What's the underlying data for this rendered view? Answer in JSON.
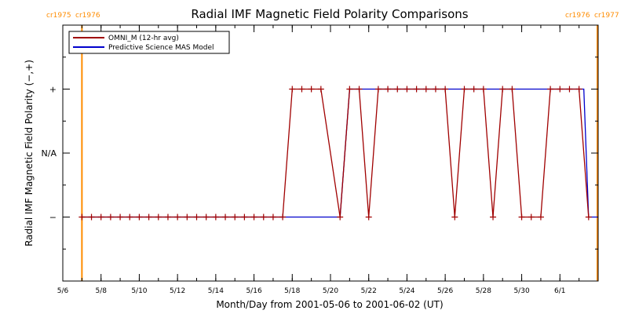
{
  "chart_data": {
    "type": "line",
    "title": "Radial IMF Magnetic Field Polarity Comparisons",
    "xlabel": "Month/Day from 2001-05-06 to 2001-06-02 (UT)",
    "ylabel": "Radial IMF Magnetic Field Polarity (−,+)",
    "xlim": [
      "2001-05-06",
      "2001-06-02"
    ],
    "x_ticks": [
      {
        "date": "2001-05-06",
        "label": "5/6"
      },
      {
        "date": "2001-05-08",
        "label": "5/8"
      },
      {
        "date": "2001-05-10",
        "label": "5/10"
      },
      {
        "date": "2001-05-12",
        "label": "5/12"
      },
      {
        "date": "2001-05-14",
        "label": "5/14"
      },
      {
        "date": "2001-05-16",
        "label": "5/16"
      },
      {
        "date": "2001-05-18",
        "label": "5/18"
      },
      {
        "date": "2001-05-20",
        "label": "5/20"
      },
      {
        "date": "2001-05-22",
        "label": "5/22"
      },
      {
        "date": "2001-05-24",
        "label": "5/24"
      },
      {
        "date": "2001-05-26",
        "label": "5/26"
      },
      {
        "date": "2001-05-28",
        "label": "5/28"
      },
      {
        "date": "2001-05-30",
        "label": "5/30"
      },
      {
        "date": "2001-06-01",
        "label": "6/1"
      }
    ],
    "y_ticks": [
      {
        "value": 1,
        "label": "+"
      },
      {
        "value": 0,
        "label": "N/A"
      },
      {
        "value": -1,
        "label": "−"
      }
    ],
    "ylim": [
      -2,
      2
    ],
    "carrington_markers": [
      {
        "date": "2001-05-07 00:00",
        "labels": [
          "cr1975",
          "cr1976"
        ],
        "color": "#ff8c00",
        "position": "top-left"
      },
      {
        "date": "2001-06-02 23:00",
        "labels": [
          "cr1976",
          "cr1977"
        ],
        "color": "#ff8c00",
        "position": "top-right"
      }
    ],
    "legend": {
      "placement": "top-left"
    },
    "series": [
      {
        "name": "OMNI_M (12-hr avg)",
        "color": "#a00000",
        "marker": "+",
        "points": [
          [
            "2001-05-07 00:00",
            -1
          ],
          [
            "2001-05-07 12:00",
            -1
          ],
          [
            "2001-05-08 00:00",
            -1
          ],
          [
            "2001-05-08 12:00",
            -1
          ],
          [
            "2001-05-09 00:00",
            -1
          ],
          [
            "2001-05-09 12:00",
            -1
          ],
          [
            "2001-05-10 00:00",
            -1
          ],
          [
            "2001-05-10 12:00",
            -1
          ],
          [
            "2001-05-11 00:00",
            -1
          ],
          [
            "2001-05-11 12:00",
            -1
          ],
          [
            "2001-05-12 00:00",
            -1
          ],
          [
            "2001-05-12 12:00",
            -1
          ],
          [
            "2001-05-13 00:00",
            -1
          ],
          [
            "2001-05-13 12:00",
            -1
          ],
          [
            "2001-05-14 00:00",
            -1
          ],
          [
            "2001-05-14 12:00",
            -1
          ],
          [
            "2001-05-15 00:00",
            -1
          ],
          [
            "2001-05-15 12:00",
            -1
          ],
          [
            "2001-05-16 00:00",
            -1
          ],
          [
            "2001-05-16 12:00",
            -1
          ],
          [
            "2001-05-17 00:00",
            -1
          ],
          [
            "2001-05-17 12:00",
            -1
          ],
          [
            "2001-05-18 00:00",
            1
          ],
          [
            "2001-05-18 12:00",
            1
          ],
          [
            "2001-05-19 00:00",
            1
          ],
          [
            "2001-05-19 12:00",
            1
          ],
          [
            "2001-05-20 12:00",
            -1
          ],
          [
            "2001-05-21 00:00",
            1
          ],
          [
            "2001-05-21 12:00",
            1
          ],
          [
            "2001-05-22 00:00",
            -1
          ],
          [
            "2001-05-22 12:00",
            1
          ],
          [
            "2001-05-23 00:00",
            1
          ],
          [
            "2001-05-23 12:00",
            1
          ],
          [
            "2001-05-24 00:00",
            1
          ],
          [
            "2001-05-24 12:00",
            1
          ],
          [
            "2001-05-25 00:00",
            1
          ],
          [
            "2001-05-25 12:00",
            1
          ],
          [
            "2001-05-26 00:00",
            1
          ],
          [
            "2001-05-26 12:00",
            -1
          ],
          [
            "2001-05-27 00:00",
            1
          ],
          [
            "2001-05-27 12:00",
            1
          ],
          [
            "2001-05-28 00:00",
            1
          ],
          [
            "2001-05-28 12:00",
            -1
          ],
          [
            "2001-05-29 00:00",
            1
          ],
          [
            "2001-05-29 12:00",
            1
          ],
          [
            "2001-05-30 00:00",
            -1
          ],
          [
            "2001-05-30 12:00",
            -1
          ],
          [
            "2001-05-31 00:00",
            -1
          ],
          [
            "2001-05-31 12:00",
            1
          ],
          [
            "2001-06-01 00:00",
            1
          ],
          [
            "2001-06-01 12:00",
            1
          ],
          [
            "2001-06-02 00:00",
            1
          ],
          [
            "2001-06-02 12:00",
            -1
          ]
        ]
      },
      {
        "name": "Predictive Science MAS Model",
        "color": "#0000cc",
        "marker": "none",
        "points": [
          [
            "2001-05-07 00:00",
            -1
          ],
          [
            "2001-05-20 12:00",
            -1
          ],
          [
            "2001-05-21 00:00",
            1
          ],
          [
            "2001-06-02 06:00",
            1
          ],
          [
            "2001-06-02 12:00",
            -1
          ],
          [
            "2001-06-02 23:00",
            -1
          ]
        ]
      }
    ]
  }
}
